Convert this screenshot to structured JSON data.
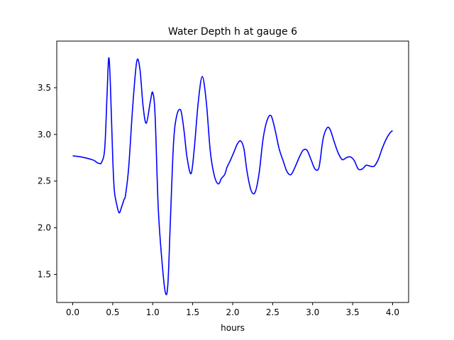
{
  "chart_data": {
    "type": "line",
    "title": "Water Depth h at gauge 6",
    "xlabel": "hours",
    "ylabel": "",
    "xlim": [
      -0.2,
      4.2
    ],
    "ylim": [
      1.2,
      4.0
    ],
    "x_ticks": [
      0.0,
      0.5,
      1.0,
      1.5,
      2.0,
      2.5,
      3.0,
      3.5,
      4.0
    ],
    "x_tick_labels": [
      "0.0",
      "0.5",
      "1.0",
      "1.5",
      "2.0",
      "2.5",
      "3.0",
      "3.5",
      "4.0"
    ],
    "y_ticks": [
      1.5,
      2.0,
      2.5,
      3.0,
      3.5
    ],
    "y_tick_labels": [
      "1.5",
      "2.0",
      "2.5",
      "3.0",
      "3.5"
    ],
    "grid": false,
    "series": [
      {
        "color": "#0000ff",
        "x": [
          0.0,
          0.1,
          0.2,
          0.27,
          0.3,
          0.33,
          0.36,
          0.4,
          0.43,
          0.45,
          0.47,
          0.5,
          0.52,
          0.55,
          0.58,
          0.61,
          0.64,
          0.66,
          0.7,
          0.75,
          0.8,
          0.84,
          0.88,
          0.92,
          0.97,
          1.0,
          1.03,
          1.07,
          1.12,
          1.16,
          1.19,
          1.22,
          1.26,
          1.3,
          1.35,
          1.39,
          1.43,
          1.48,
          1.52,
          1.57,
          1.62,
          1.67,
          1.72,
          1.77,
          1.82,
          1.86,
          1.9,
          1.93,
          1.97,
          2.02,
          2.06,
          2.1,
          2.14,
          2.18,
          2.23,
          2.28,
          2.33,
          2.38,
          2.43,
          2.48,
          2.53,
          2.58,
          2.63,
          2.68,
          2.73,
          2.78,
          2.83,
          2.88,
          2.93,
          2.98,
          3.03,
          3.08,
          3.13,
          3.18,
          3.22,
          3.27,
          3.32,
          3.37,
          3.42,
          3.47,
          3.52,
          3.57,
          3.62,
          3.67,
          3.72,
          3.77,
          3.82,
          3.87,
          3.92,
          3.97,
          4.0
        ],
        "y": [
          2.77,
          2.76,
          2.74,
          2.72,
          2.7,
          2.69,
          2.7,
          2.85,
          3.45,
          3.82,
          3.55,
          2.75,
          2.4,
          2.25,
          2.16,
          2.22,
          2.3,
          2.35,
          2.65,
          3.3,
          3.78,
          3.7,
          3.3,
          3.12,
          3.35,
          3.45,
          3.2,
          2.2,
          1.6,
          1.3,
          1.4,
          2.05,
          2.9,
          3.2,
          3.26,
          3.05,
          2.75,
          2.58,
          2.85,
          3.35,
          3.62,
          3.35,
          2.82,
          2.56,
          2.47,
          2.53,
          2.57,
          2.65,
          2.72,
          2.82,
          2.9,
          2.93,
          2.85,
          2.6,
          2.4,
          2.38,
          2.58,
          2.95,
          3.15,
          3.2,
          3.05,
          2.85,
          2.72,
          2.6,
          2.57,
          2.65,
          2.75,
          2.83,
          2.83,
          2.73,
          2.63,
          2.65,
          2.95,
          3.07,
          3.05,
          2.92,
          2.8,
          2.73,
          2.75,
          2.76,
          2.72,
          2.63,
          2.63,
          2.67,
          2.66,
          2.66,
          2.73,
          2.85,
          2.95,
          3.02,
          3.04
        ]
      }
    ]
  }
}
